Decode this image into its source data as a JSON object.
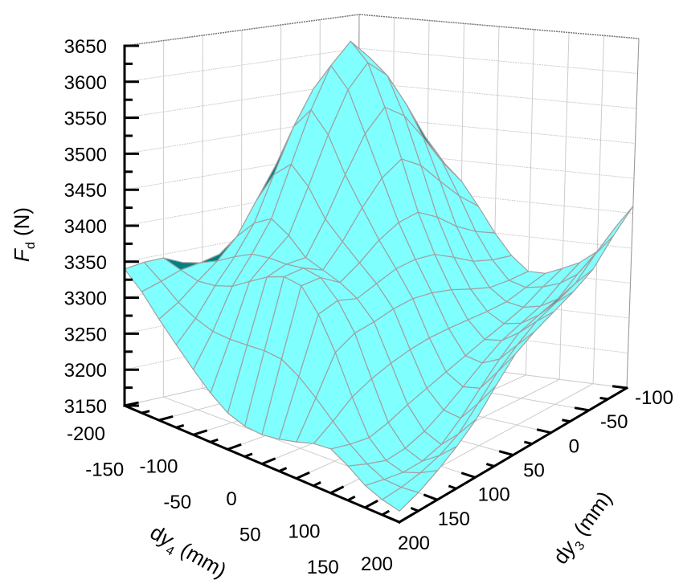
{
  "chart_data": {
    "type": "surface",
    "title": "",
    "x": {
      "name": "dy4",
      "label": {
        "prefix": "d",
        "var": "y",
        "sub": "4",
        "unit": " (mm)"
      },
      "values": [
        -200,
        -150,
        -100,
        -50,
        0,
        50,
        100,
        150,
        200
      ],
      "ticks": [
        "-200",
        "-150",
        "-100",
        "-50",
        "0",
        "50",
        "100",
        "150",
        "200"
      ],
      "range": [
        -200,
        200
      ]
    },
    "y": {
      "name": "dy3",
      "label": {
        "prefix": "d",
        "var": "y",
        "sub": "3",
        "unit": " (mm)"
      },
      "values": [
        -100,
        -50,
        0,
        50,
        100,
        150,
        200
      ],
      "ticks": [
        "-100",
        "-50",
        "0",
        "50",
        "100",
        "150",
        "200"
      ],
      "range": [
        -100,
        200
      ]
    },
    "z": {
      "name": "Fd",
      "label": {
        "var": "F",
        "sub": "d",
        "unit": " (N)"
      },
      "ticks": [
        "3150",
        "3200",
        "3250",
        "3300",
        "3350",
        "3400",
        "3450",
        "3500",
        "3550",
        "3600",
        "3650"
      ],
      "range": [
        3150,
        3650
      ]
    },
    "grid": true,
    "z_values": [
      [
        3300,
        3380,
        3450,
        3420,
        3350,
        3300,
        3310,
        3340,
        3410
      ],
      [
        3320,
        3450,
        3560,
        3500,
        3380,
        3300,
        3280,
        3300,
        3350
      ],
      [
        3330,
        3520,
        3645,
        3560,
        3420,
        3320,
        3260,
        3280,
        3320
      ],
      [
        3310,
        3470,
        3560,
        3480,
        3400,
        3330,
        3240,
        3230,
        3290
      ],
      [
        3320,
        3380,
        3420,
        3380,
        3360,
        3320,
        3220,
        3180,
        3230
      ],
      [
        3345,
        3330,
        3340,
        3370,
        3375,
        3300,
        3200,
        3170,
        3190
      ],
      [
        3340,
        3290,
        3240,
        3200,
        3190,
        3200,
        3210,
        3180,
        3165
      ]
    ],
    "colors": {
      "surface": "#80FFFF",
      "underside": "#008080",
      "mesh": "#A0A0A0",
      "grid": "#CCCCCC",
      "axis": "#000000"
    }
  }
}
